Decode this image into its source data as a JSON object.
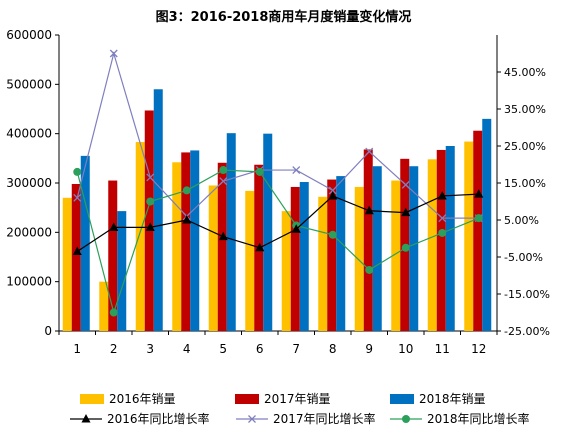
{
  "chart_data": {
    "type": "bar",
    "title": "图3：2016-2018商用车月度销量变化情况",
    "categories": [
      "1",
      "2",
      "3",
      "4",
      "5",
      "6",
      "7",
      "8",
      "9",
      "10",
      "11",
      "12"
    ],
    "y_left": {
      "min": 0,
      "max": 600000,
      "ticks": [
        "0",
        "100000",
        "200000",
        "300000",
        "400000",
        "500000",
        "600000"
      ]
    },
    "y_right": {
      "min": -25,
      "max": 55,
      "ticks": [
        "-25.00%",
        "-15.00%",
        "-5.00%",
        "5.00%",
        "15.00%",
        "25.00%",
        "35.00%",
        "45.00%"
      ]
    },
    "bar_series": [
      {
        "name": "2016年销量",
        "color": "#FFC000",
        "values": [
          270000,
          100000,
          383000,
          342000,
          295000,
          284000,
          243000,
          272000,
          292000,
          305000,
          348000,
          384000
        ]
      },
      {
        "name": "2017年销量",
        "color": "#C00000",
        "values": [
          298000,
          305000,
          447000,
          362000,
          341000,
          337000,
          292000,
          307000,
          368000,
          349000,
          367000,
          406000
        ]
      },
      {
        "name": "2018年销量",
        "color": "#0070C0",
        "values": [
          355000,
          243000,
          490000,
          366000,
          401000,
          400000,
          302000,
          314000,
          334000,
          334000,
          375000,
          430000
        ]
      }
    ],
    "line_series": [
      {
        "name": "2016年同比增长率",
        "color": "#000000",
        "marker": "triangle",
        "values": [
          -3.5,
          3.0,
          3.0,
          5.0,
          0.5,
          -2.5,
          2.5,
          11.5,
          7.5,
          7.0,
          11.5,
          12.0
        ]
      },
      {
        "name": "2017年同比增长率",
        "color": "#7F7FBF",
        "marker": "x",
        "values": [
          11.0,
          50.0,
          16.5,
          6.0,
          15.5,
          18.5,
          18.5,
          13.0,
          23.5,
          14.5,
          5.5,
          5.5
        ]
      },
      {
        "name": "2018年同比增长率",
        "color": "#2CA05A",
        "marker": "circle",
        "values": [
          18.0,
          -20.0,
          10.0,
          13.0,
          18.5,
          18.0,
          3.5,
          1.0,
          -8.5,
          -2.5,
          1.5,
          5.5
        ]
      }
    ],
    "legend_position": "bottom"
  }
}
